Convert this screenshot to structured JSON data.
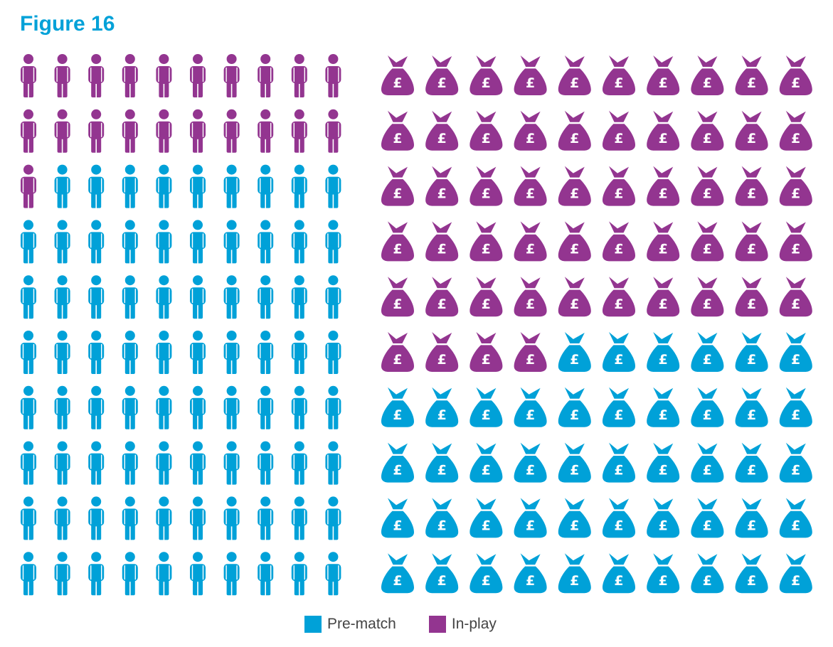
{
  "title": "Figure 16",
  "colors": {
    "pre_match": "#00a1d8",
    "in_play": "#933590"
  },
  "legend": [
    {
      "label": "Pre-match",
      "color": "#00a1d8"
    },
    {
      "label": "In-play",
      "color": "#933590"
    }
  ],
  "chart_data": [
    {
      "type": "pictogram",
      "icon": "person-icon",
      "total_icons": 100,
      "grid": [
        10,
        10
      ],
      "fill_order": "row-major from top-left",
      "series": [
        {
          "name": "In-play",
          "values": [
            21
          ]
        },
        {
          "name": "Pre-match",
          "values": [
            79
          ]
        }
      ]
    },
    {
      "type": "pictogram",
      "icon": "money-bag-pound-icon",
      "total_icons": 100,
      "grid": [
        10,
        10
      ],
      "fill_order": "row-major from top-left",
      "series": [
        {
          "name": "In-play",
          "values": [
            54
          ]
        },
        {
          "name": "Pre-match",
          "values": [
            46
          ]
        }
      ]
    }
  ]
}
